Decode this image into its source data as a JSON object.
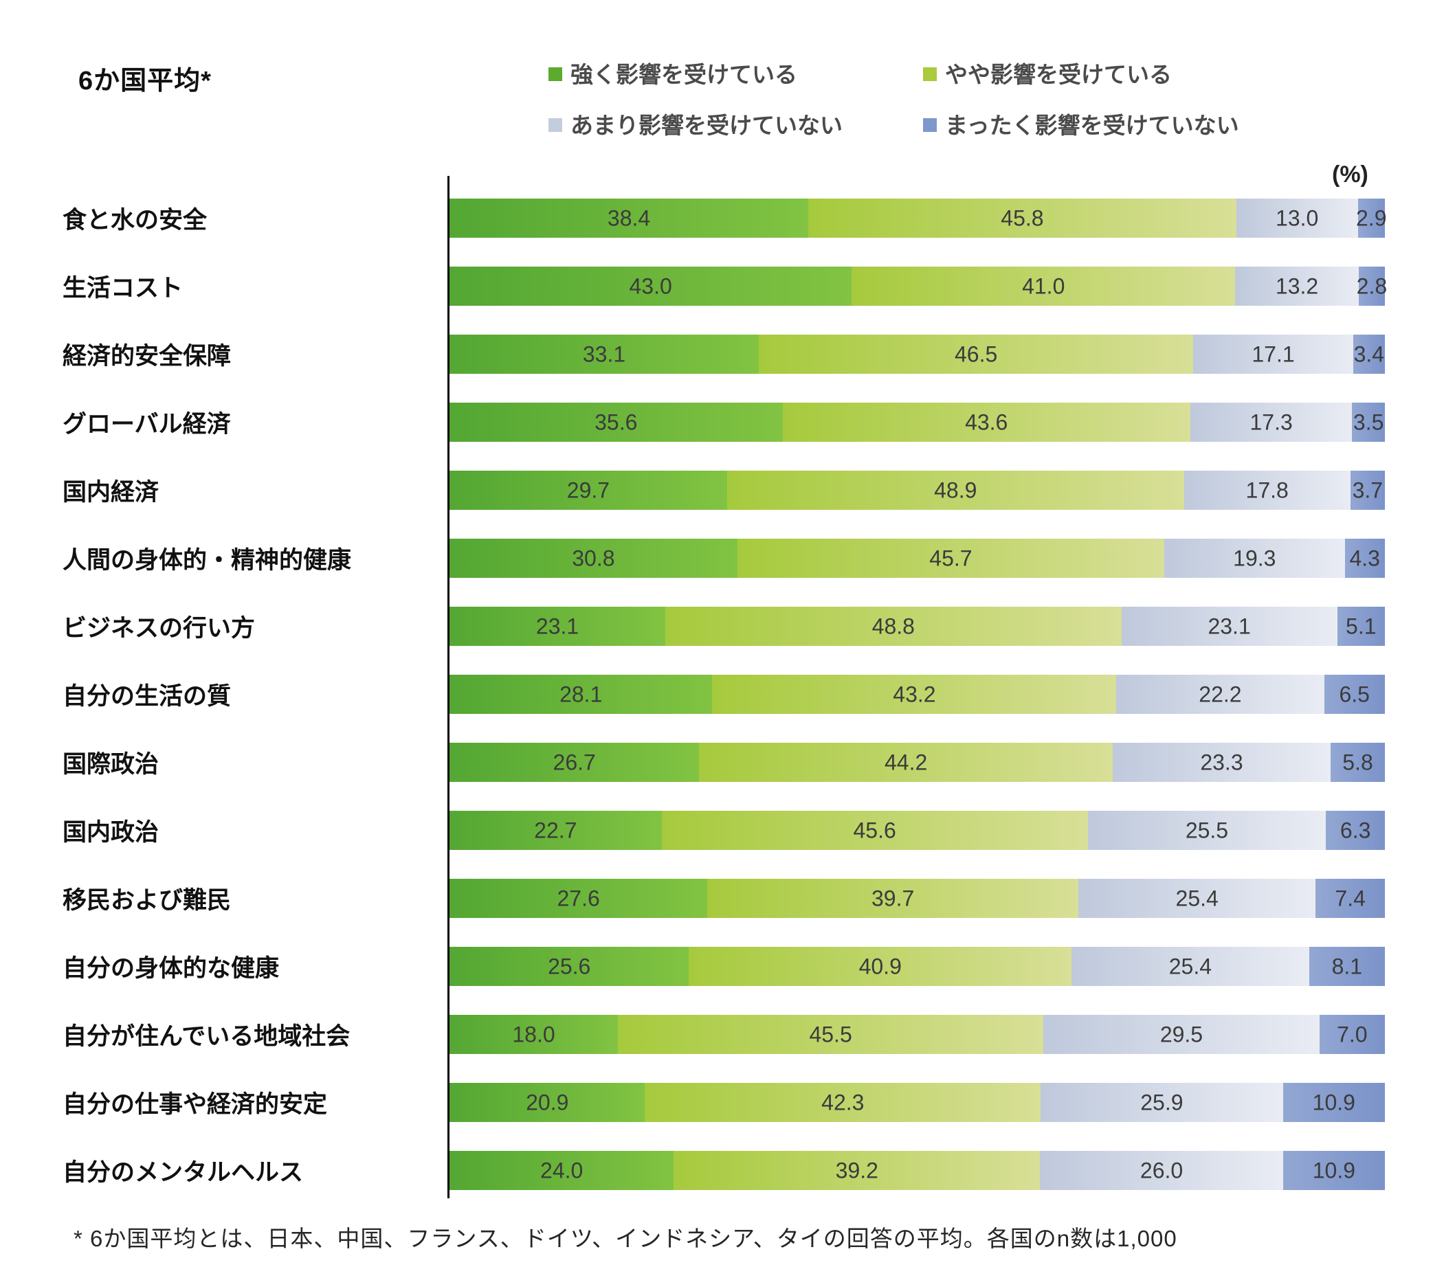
{
  "title": "6か国平均*",
  "unit_label": "(%)",
  "footnote": "* 6か国平均とは、日本、中国、フランス、ドイツ、インドネシア、タイの回答の平均。各国のn数は1,000",
  "legend": [
    {
      "label": "強く影響を受けている",
      "color": "#5AAB2E"
    },
    {
      "label": "やや影響を受けている",
      "color": "#A9CB3D"
    },
    {
      "label": "あまり影響を受けていない",
      "color": "#C3CDDE"
    },
    {
      "label": "まったく影響を受けていない",
      "color": "#7E97CC"
    }
  ],
  "chart_data": {
    "type": "bar",
    "orientation": "horizontal",
    "stacked": true,
    "value_unit": "%",
    "xlim": [
      0,
      100
    ],
    "title": "6か国平均*",
    "categories": [
      "食と水の安全",
      "生活コスト",
      "経済的安全保障",
      "グローバル経済",
      "国内経済",
      "人間の身体的・精神的健康",
      "ビジネスの行い方",
      "自分の生活の質",
      "国際政治",
      "国内政治",
      "移民および難民",
      "自分の身体的な健康",
      "自分が住んでいる地域社会",
      "自分の仕事や経済的安定",
      "自分のメンタルヘルス"
    ],
    "series": [
      {
        "name": "強く影響を受けている",
        "gradient": [
          "#53A733",
          "#82C342"
        ],
        "values": [
          38.4,
          43.0,
          33.1,
          35.6,
          29.7,
          30.8,
          23.1,
          28.1,
          26.7,
          22.7,
          27.6,
          25.6,
          18.0,
          20.9,
          24.0
        ]
      },
      {
        "name": "やや影響を受けている",
        "gradient": [
          "#A6CA3D",
          "#D8DF97"
        ],
        "values": [
          45.8,
          41.0,
          46.5,
          43.6,
          48.9,
          45.7,
          48.8,
          43.2,
          44.2,
          45.6,
          39.7,
          40.9,
          45.5,
          42.3,
          39.2
        ]
      },
      {
        "name": "あまり影響を受けていない",
        "gradient": [
          "#BFC9DC",
          "#E9ECF3"
        ],
        "values": [
          13.0,
          13.2,
          17.1,
          17.3,
          17.8,
          19.3,
          23.1,
          22.2,
          23.3,
          25.5,
          25.4,
          25.4,
          29.5,
          25.9,
          26.0
        ]
      },
      {
        "name": "まったく影響を受けていない",
        "gradient": [
          "#93A7D3",
          "#7B93C9"
        ],
        "values": [
          2.9,
          2.8,
          3.4,
          3.5,
          3.7,
          4.3,
          5.1,
          6.5,
          5.8,
          6.3,
          7.4,
          8.1,
          7.0,
          10.9,
          10.9
        ]
      }
    ]
  }
}
